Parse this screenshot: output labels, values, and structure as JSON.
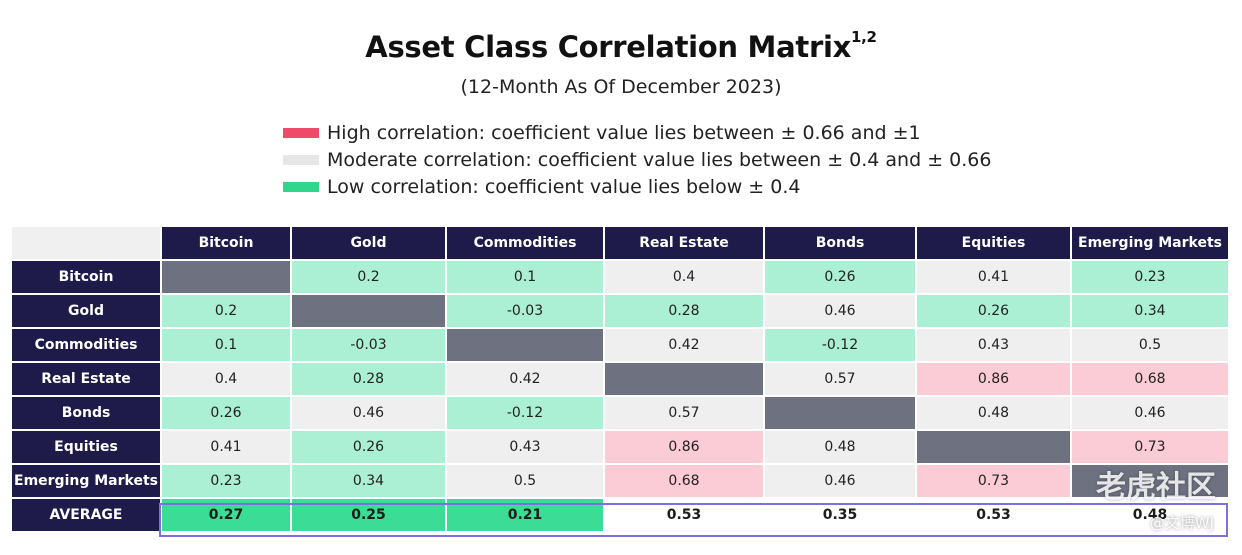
{
  "title": "Asset Class Correlation Matrix",
  "title_sup": "1,2",
  "subtitle": "(12-Month As Of December 2023)",
  "legend": [
    {
      "label": "High correlation: coefficient value lies between ± 0.66 and ±1",
      "color": "#f04a6a"
    },
    {
      "label": "Moderate correlation: coefficient value lies between ± 0.4 and ± 0.66",
      "color": "#e6e6e6"
    },
    {
      "label": "Low correlation: coefficient value lies below ± 0.4",
      "color": "#2fd68c"
    }
  ],
  "watermark": "老虎社区",
  "watermark_sub": "@文博WJ",
  "chart_data": {
    "type": "heatmap",
    "columns": [
      "Bitcoin",
      "Gold",
      "Commodities",
      "Real Estate",
      "Bonds",
      "Equities",
      "Emerging Markets"
    ],
    "rows": [
      {
        "label": "Bitcoin",
        "values": [
          null,
          "0.2",
          "0.1",
          "0.4",
          "0.26",
          "0.41",
          "0.23"
        ]
      },
      {
        "label": "Gold",
        "values": [
          "0.2",
          null,
          "-0.03",
          "0.28",
          "0.46",
          "0.26",
          "0.34"
        ]
      },
      {
        "label": "Commodities",
        "values": [
          "0.1",
          "-0.03",
          null,
          "0.42",
          "-0.12",
          "0.43",
          "0.5"
        ]
      },
      {
        "label": "Real Estate",
        "values": [
          "0.4",
          "0.28",
          "0.42",
          null,
          "0.57",
          "0.86",
          "0.68"
        ]
      },
      {
        "label": "Bonds",
        "values": [
          "0.26",
          "0.46",
          "-0.12",
          "0.57",
          null,
          "0.48",
          "0.46"
        ]
      },
      {
        "label": "Equities",
        "values": [
          "0.41",
          "0.26",
          "0.43",
          "0.86",
          "0.48",
          null,
          "0.73"
        ]
      },
      {
        "label": "Emerging Markets",
        "values": [
          "0.23",
          "0.34",
          "0.5",
          "0.68",
          "0.46",
          "0.73",
          null
        ]
      }
    ],
    "average": {
      "label": "AVERAGE",
      "values": [
        "0.27",
        "0.25",
        "0.21",
        "0.53",
        "0.35",
        "0.53",
        "0.48"
      ]
    }
  }
}
